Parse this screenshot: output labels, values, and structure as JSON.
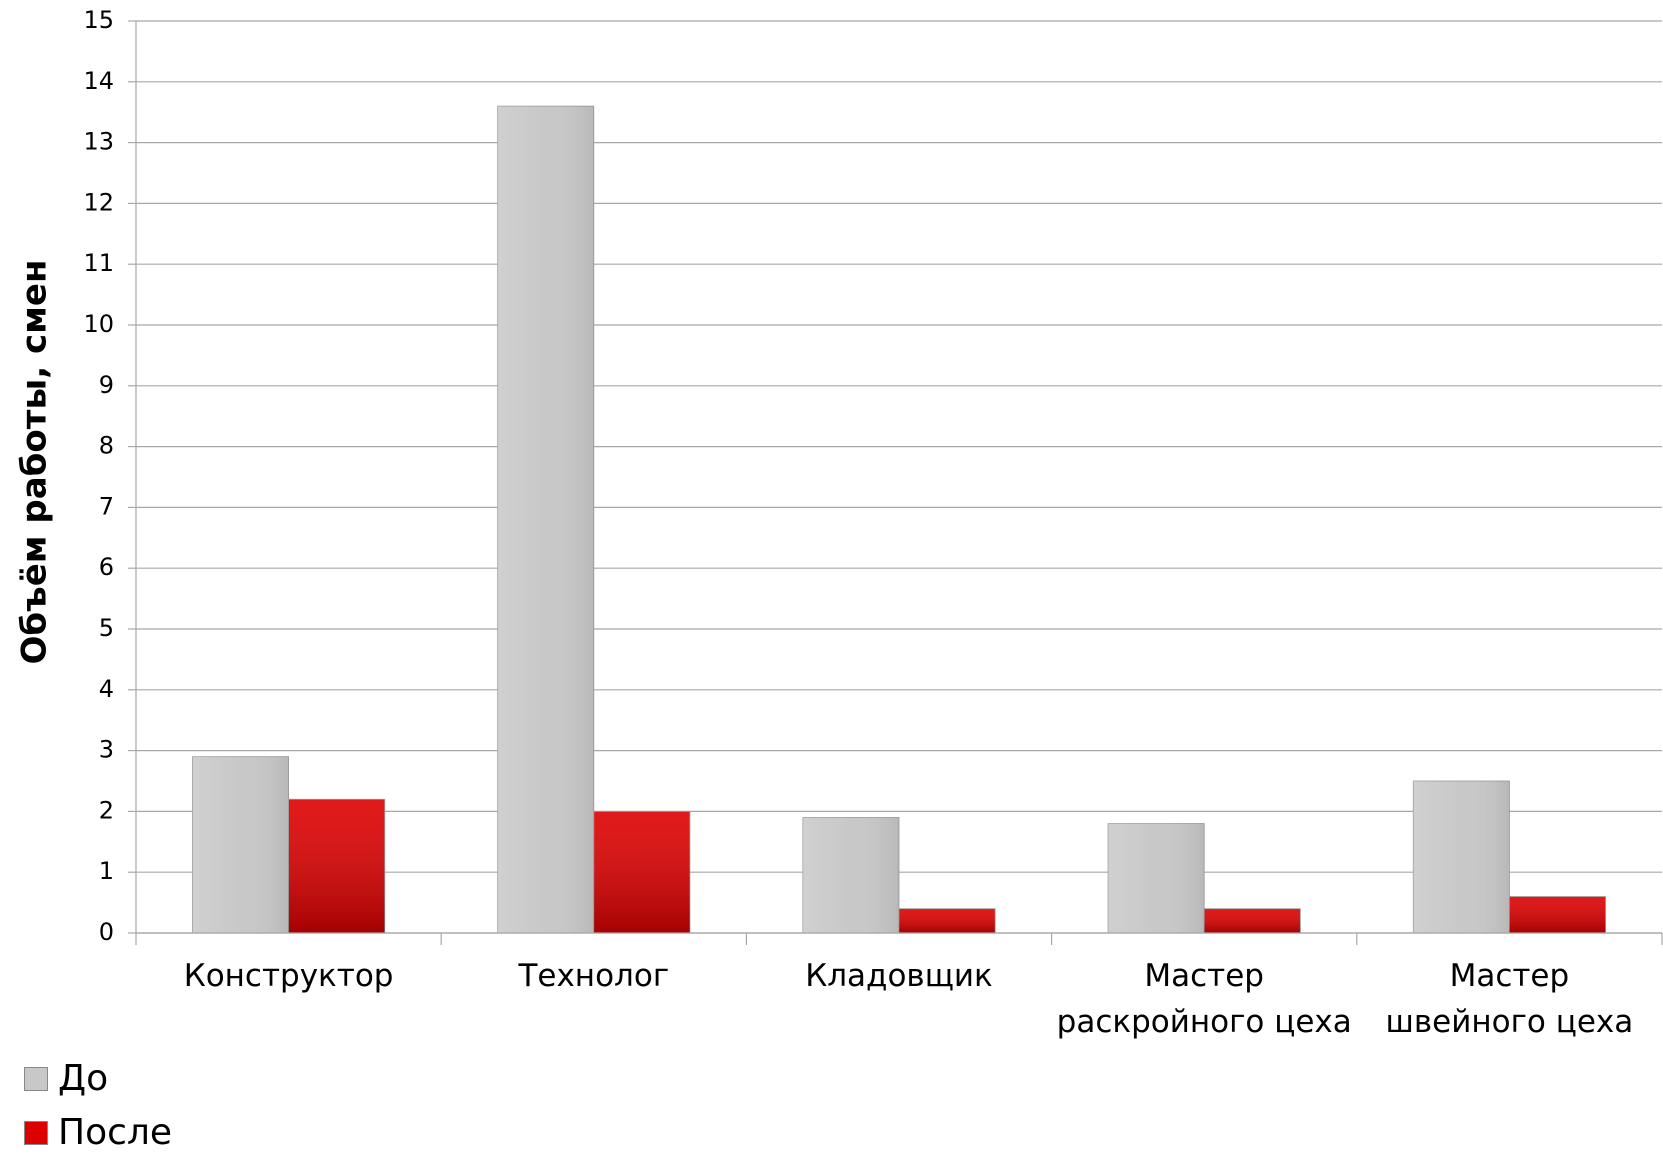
{
  "chart_data": {
    "type": "bar",
    "y_label": "Объём работы, смен",
    "categories": [
      "Конструктор",
      "Технолог",
      "Кладовщик",
      "Мастер\nраскройного цеха",
      "Мастер\nшвейного цеха"
    ],
    "series": [
      {
        "name": "До",
        "color": "#c8c8c8",
        "values": [
          2.9,
          13.6,
          1.9,
          1.8,
          2.5
        ]
      },
      {
        "name": "После",
        "color": "#dd0000",
        "values": [
          2.2,
          2.0,
          0.4,
          0.4,
          0.6
        ]
      }
    ],
    "ylim": [
      0,
      15
    ],
    "yticks": [
      0,
      1,
      2,
      3,
      4,
      5,
      6,
      7,
      8,
      9,
      10,
      11,
      12,
      13,
      14,
      15
    ],
    "grid": true,
    "legend": "bottom-left"
  }
}
